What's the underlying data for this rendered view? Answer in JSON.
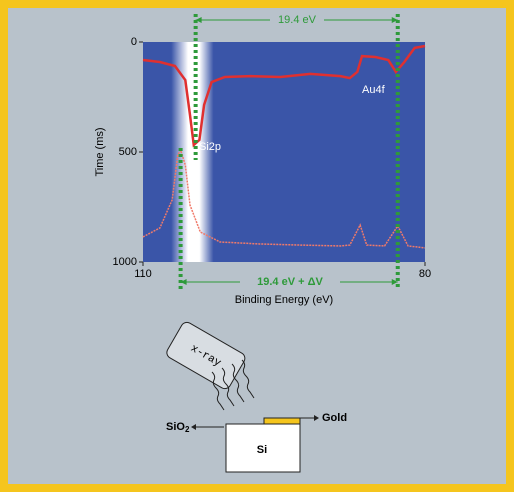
{
  "chart_data": {
    "type": "line",
    "xlabel": "Binding Energy (eV)",
    "ylabel": "Time (ms)",
    "xlim": [
      110,
      80
    ],
    "xticks": [
      110,
      80
    ],
    "ylim": [
      0,
      1000
    ],
    "yticks": [
      0,
      500,
      1000
    ],
    "series": [
      {
        "color": "#e03030",
        "x": [
          110,
          108.2,
          106.6,
          105.5,
          105.0,
          104.6,
          104.0,
          103.5,
          102.7,
          101.3,
          98.6,
          95.4,
          92.2,
          89.0,
          88.0,
          87.2,
          86.7,
          85.3,
          83.9,
          83.1,
          82.2,
          81.1,
          80.0
        ],
        "values": [
          82,
          91,
          109,
          173,
          332,
          468,
          445,
          286,
          182,
          159,
          155,
          159,
          145,
          155,
          164,
          136,
          64,
          68,
          82,
          136,
          91,
          27,
          18
        ]
      },
      {
        "color": "#f07a6a",
        "x": [
          110,
          108.2,
          106.9,
          106.3,
          106.0,
          105.5,
          105.0,
          103.9,
          101.8,
          97.6,
          93.3,
          89.0,
          88.0,
          86.9,
          86.2,
          84.3,
          82.9,
          81.8,
          80.0
        ],
        "values": [
          886,
          845,
          718,
          514,
          491,
          559,
          741,
          864,
          909,
          918,
          923,
          927,
          923,
          832,
          923,
          927,
          836,
          927,
          936
        ]
      }
    ],
    "vlines": [
      104.4,
      106.0,
      82.9
    ],
    "vline_color": "#2e9a3a",
    "annotations": {
      "top": "19.4 eV",
      "bottom": "19.4 eV + ΔV",
      "si": "Si2p",
      "au": "Au4f"
    }
  },
  "diagram": {
    "xray": "x-ray",
    "sio2": "SiO",
    "sio2_sub": "2",
    "gold": "Gold",
    "si": "Si"
  }
}
